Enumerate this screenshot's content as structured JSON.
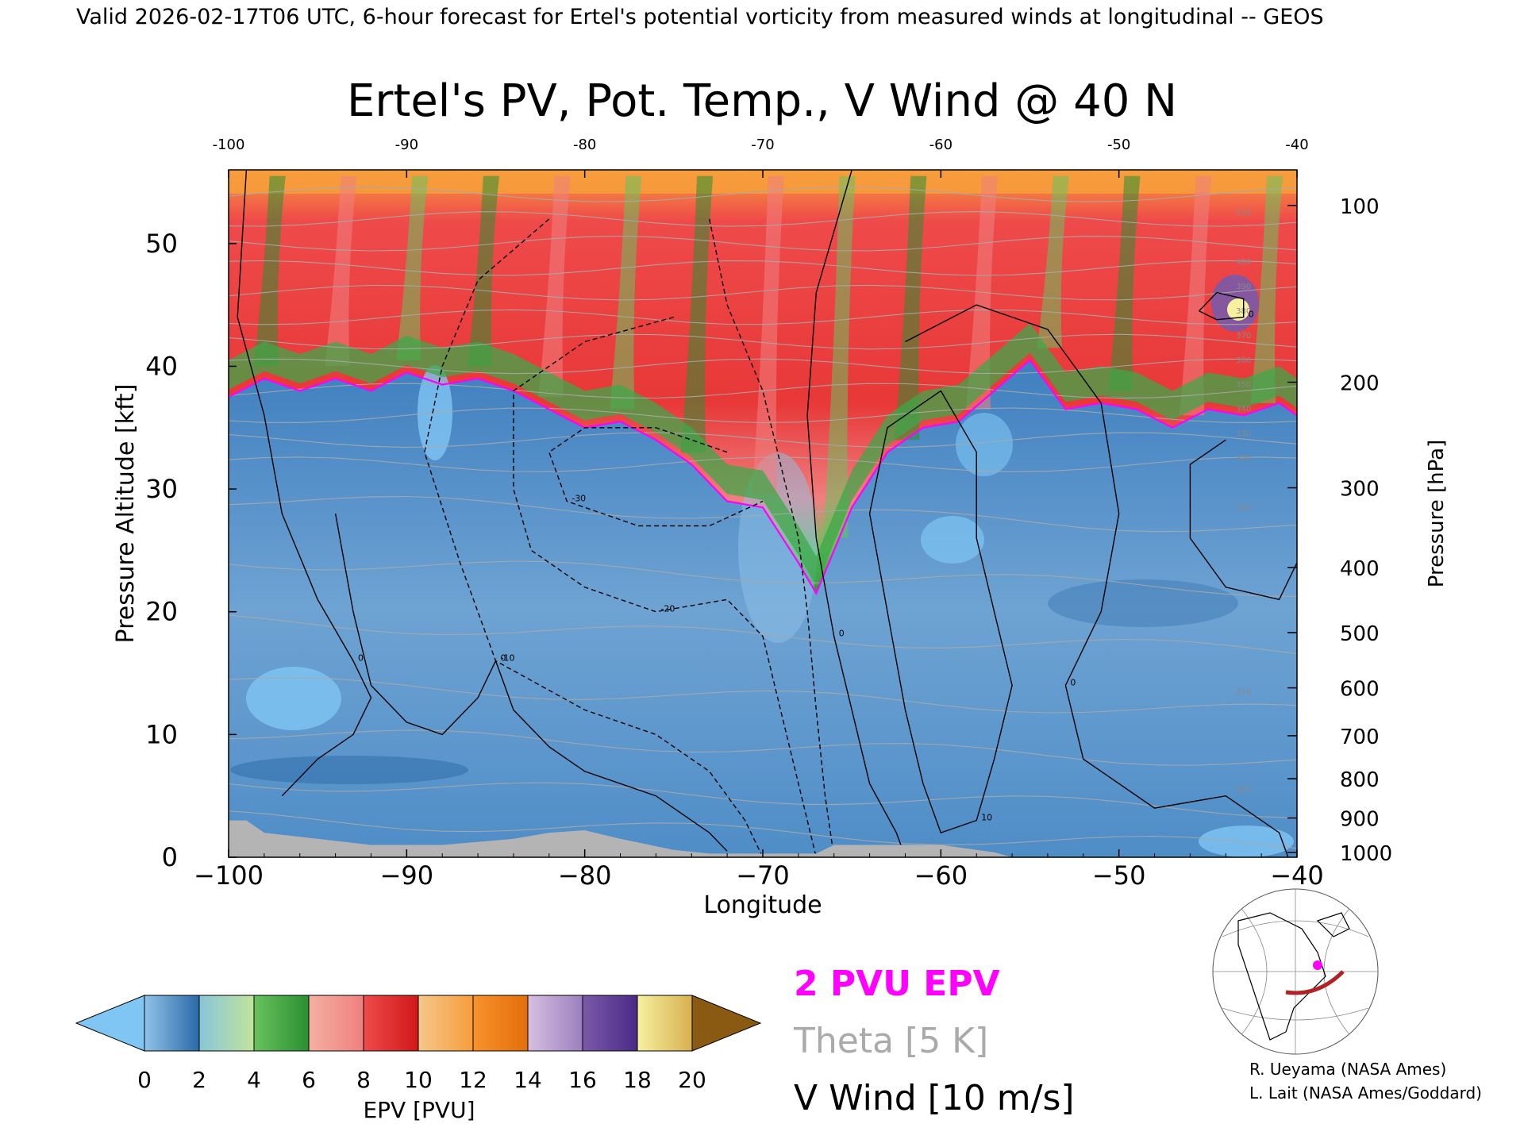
{
  "header": {
    "valid_line": "Valid 2026-02-17T06 UTC, 6-hour forecast for Ertel's potential vorticity from measured winds at longitudinal -- GEOS"
  },
  "chart_data": {
    "type": "cross-section",
    "title": "Ertel's PV, Pot. Temp., V Wind @ 40 N",
    "xlabel": "Longitude",
    "ylabel": "Pressure Altitude [kft]",
    "ylabel_right": "Pressure [hPa]",
    "xlim": [
      -100,
      -40
    ],
    "ylim": [
      0,
      56
    ],
    "x_ticks": [
      "−100",
      "−90",
      "−80",
      "−70",
      "−60",
      "−50",
      "−40"
    ],
    "x_tick_values": [
      -100,
      -90,
      -80,
      -70,
      -60,
      -50,
      -40
    ],
    "x_ticks_top": [
      "-100",
      "-90",
      "-80",
      "-70",
      "-60",
      "-50",
      "-40"
    ],
    "y_ticks": [
      "0",
      "10",
      "20",
      "30",
      "40",
      "50"
    ],
    "y_tick_values": [
      0,
      10,
      20,
      30,
      40,
      50
    ],
    "pressure_ticks": [
      {
        "label": "100",
        "kft": 53.1
      },
      {
        "label": "200",
        "kft": 38.7
      },
      {
        "label": "300",
        "kft": 30.1
      },
      {
        "label": "400",
        "kft": 23.6
      },
      {
        "label": "500",
        "kft": 18.3
      },
      {
        "label": "600",
        "kft": 13.8
      },
      {
        "label": "700",
        "kft": 9.9
      },
      {
        "label": "800",
        "kft": 6.4
      },
      {
        "label": "900",
        "kft": 3.2
      },
      {
        "label": "1000",
        "kft": 0.4
      }
    ],
    "tropopause_kft": [
      [
        -100,
        37.5
      ],
      [
        -98,
        39
      ],
      [
        -96,
        38
      ],
      [
        -94,
        39
      ],
      [
        -92,
        38
      ],
      [
        -90,
        39.5
      ],
      [
        -88,
        38.5
      ],
      [
        -86,
        39
      ],
      [
        -84,
        38
      ],
      [
        -82,
        36.5
      ],
      [
        -80,
        35
      ],
      [
        -78,
        35.5
      ],
      [
        -76,
        34
      ],
      [
        -74,
        32
      ],
      [
        -72,
        29
      ],
      [
        -70,
        28.5
      ],
      [
        -68,
        24
      ],
      [
        -67,
        21.5
      ],
      [
        -66,
        25
      ],
      [
        -65,
        28.5
      ],
      [
        -63,
        33
      ],
      [
        -61,
        35
      ],
      [
        -59,
        35.5
      ],
      [
        -57,
        38
      ],
      [
        -55,
        40.5
      ],
      [
        -53,
        36.5
      ],
      [
        -51,
        37
      ],
      [
        -49,
        36.5
      ],
      [
        -47,
        35
      ],
      [
        -45,
        36.5
      ],
      [
        -43,
        36
      ],
      [
        -41,
        37
      ],
      [
        -40,
        36
      ]
    ],
    "theta_levels": [
      {
        "kft": 2,
        "label": ""
      },
      {
        "kft": 5,
        "label": "300"
      },
      {
        "kft": 9,
        "label": ""
      },
      {
        "kft": 13,
        "label": "310"
      },
      {
        "kft": 18,
        "label": ""
      },
      {
        "kft": 23,
        "label": ""
      },
      {
        "kft": 28,
        "label": "320"
      },
      {
        "kft": 32,
        "label": "320"
      },
      {
        "kft": 34,
        "label": "330"
      },
      {
        "kft": 36,
        "label": "340"
      },
      {
        "kft": 38,
        "label": "350"
      },
      {
        "kft": 40,
        "label": "360"
      },
      {
        "kft": 42,
        "label": "370"
      },
      {
        "kft": 44,
        "label": "380"
      },
      {
        "kft": 46,
        "label": "390"
      },
      {
        "kft": 48,
        "label": "400"
      },
      {
        "kft": 50,
        "label": ""
      },
      {
        "kft": 52,
        "label": "410"
      },
      {
        "kft": 54,
        "label": ""
      }
    ],
    "v_wind_contours": [
      {
        "name": "zero-west",
        "style": "solid",
        "label": "0",
        "points": [
          [
            -99,
            56
          ],
          [
            -99.5,
            44
          ],
          [
            -98,
            36
          ],
          [
            -97,
            28
          ],
          [
            -95,
            21
          ],
          [
            -93,
            16
          ],
          [
            -92,
            13
          ],
          [
            -93,
            10
          ],
          [
            -95,
            8
          ],
          [
            -97,
            5
          ]
        ]
      },
      {
        "name": "zero-southwest",
        "style": "solid",
        "label": "0",
        "points": [
          [
            -94,
            28
          ],
          [
            -93,
            20
          ],
          [
            -92,
            14
          ],
          [
            -90,
            11
          ],
          [
            -88,
            10
          ],
          [
            -86,
            13
          ],
          [
            -85,
            16
          ],
          [
            -84,
            12
          ],
          [
            -82,
            9
          ],
          [
            -80,
            7
          ],
          [
            -76,
            5
          ],
          [
            -73,
            2
          ],
          [
            -72,
            0.5
          ]
        ]
      },
      {
        "name": "neg10",
        "style": "dashed",
        "label": "-10",
        "points": [
          [
            -82,
            52
          ],
          [
            -86,
            47
          ],
          [
            -88,
            40
          ],
          [
            -89,
            33
          ],
          [
            -87,
            24
          ],
          [
            -85,
            16
          ],
          [
            -80,
            12
          ],
          [
            -76,
            10
          ],
          [
            -73,
            7
          ],
          [
            -71,
            3
          ],
          [
            -70,
            0
          ]
        ]
      },
      {
        "name": "neg20",
        "style": "dashed",
        "label": "-20",
        "points": [
          [
            -75,
            44
          ],
          [
            -80,
            42
          ],
          [
            -84,
            38
          ],
          [
            -84,
            30
          ],
          [
            -83,
            25
          ],
          [
            -80,
            22
          ],
          [
            -76,
            20
          ],
          [
            -72,
            21
          ],
          [
            -70,
            18
          ],
          [
            -69,
            12
          ],
          [
            -68,
            6
          ],
          [
            -67,
            0
          ]
        ]
      },
      {
        "name": "neg30",
        "style": "dashed",
        "label": "-30",
        "points": [
          [
            -72,
            33
          ],
          [
            -76,
            35
          ],
          [
            -80,
            35
          ],
          [
            -82,
            33
          ],
          [
            -81,
            29
          ],
          [
            -77,
            27
          ],
          [
            -73,
            27
          ],
          [
            -70,
            29
          ]
        ]
      },
      {
        "name": "jet-core",
        "style": "dashed",
        "label": "",
        "points": [
          [
            -73,
            52
          ],
          [
            -72,
            45
          ],
          [
            -70,
            38
          ],
          [
            -69,
            32
          ],
          [
            -68,
            26
          ],
          [
            -67.5,
            20
          ],
          [
            -67,
            12
          ],
          [
            -66.5,
            5
          ],
          [
            -66,
            0
          ]
        ]
      },
      {
        "name": "zero-trough",
        "style": "solid",
        "label": "0",
        "points": [
          [
            -65,
            56
          ],
          [
            -67,
            46
          ],
          [
            -67.5,
            36
          ],
          [
            -67,
            26
          ],
          [
            -66,
            18
          ],
          [
            -65,
            12
          ],
          [
            -64,
            6
          ],
          [
            -62.5,
            2
          ],
          [
            -62,
            0
          ]
        ]
      },
      {
        "name": "pos10",
        "style": "solid",
        "label": "10",
        "points": [
          [
            -60,
            38
          ],
          [
            -63,
            35
          ],
          [
            -64,
            28
          ],
          [
            -63,
            20
          ],
          [
            -62,
            12
          ],
          [
            -61,
            6
          ],
          [
            -60,
            2
          ],
          [
            -58,
            3
          ],
          [
            -57,
            8
          ],
          [
            -56,
            14
          ],
          [
            -57,
            20
          ],
          [
            -58,
            26
          ],
          [
            -58,
            33
          ],
          [
            -60,
            38
          ]
        ]
      },
      {
        "name": "zero-east",
        "style": "solid",
        "label": "0",
        "points": [
          [
            -62,
            42
          ],
          [
            -58,
            45
          ],
          [
            -54,
            43
          ],
          [
            -51,
            37
          ],
          [
            -50,
            28
          ],
          [
            -51,
            20
          ],
          [
            -53,
            14
          ],
          [
            -52,
            8
          ],
          [
            -48,
            4
          ],
          [
            -44,
            5
          ],
          [
            -41,
            2
          ],
          [
            -40.5,
            0
          ]
        ]
      },
      {
        "name": "zero-east-loop",
        "style": "solid",
        "label": "",
        "points": [
          [
            -44,
            34
          ],
          [
            -46,
            32
          ],
          [
            -46,
            26
          ],
          [
            -44,
            22
          ],
          [
            -41,
            21
          ],
          [
            -40,
            24
          ]
        ]
      },
      {
        "name": "zero-upper-right",
        "style": "solid",
        "label": "0",
        "points": [
          [
            -45.5,
            44.5
          ],
          [
            -44.5,
            46
          ],
          [
            -43,
            45.5
          ],
          [
            -43,
            44
          ],
          [
            -44.5,
            43.8
          ],
          [
            -45.5,
            44.5
          ]
        ]
      }
    ],
    "terrain_kft": [
      [
        -100,
        3
      ],
      [
        -99,
        3
      ],
      [
        -98,
        2
      ],
      [
        -95,
        1.5
      ],
      [
        -92,
        1
      ],
      [
        -88,
        1
      ],
      [
        -84,
        1.5
      ],
      [
        -82,
        2
      ],
      [
        -80,
        2.2
      ],
      [
        -78,
        1.5
      ],
      [
        -75,
        0.6
      ],
      [
        -73,
        0.3
      ],
      [
        -67,
        0.3
      ],
      [
        -66,
        1
      ],
      [
        -62,
        1
      ],
      [
        -60,
        1
      ],
      [
        -57,
        0.4
      ],
      [
        -56,
        0
      ],
      [
        -40,
        0
      ]
    ],
    "colorbar": {
      "label": "EPV [PVU]",
      "ticks": [
        "0",
        "2",
        "4",
        "6",
        "8",
        "10",
        "12",
        "14",
        "16",
        "18",
        "20"
      ],
      "bins": [
        {
          "from": 0,
          "to": 2,
          "colors": [
            "#8fc2e8",
            "#2b6aa8"
          ]
        },
        {
          "from": 2,
          "to": 4,
          "colors": [
            "#88c6d8",
            "#c2e39c"
          ]
        },
        {
          "from": 4,
          "to": 6,
          "colors": [
            "#68c25c",
            "#2a8f32"
          ]
        },
        {
          "from": 6,
          "to": 8,
          "colors": [
            "#f4b0a0",
            "#f08080"
          ]
        },
        {
          "from": 8,
          "to": 10,
          "colors": [
            "#ef4a4a",
            "#d01818"
          ]
        },
        {
          "from": 10,
          "to": 12,
          "colors": [
            "#f5c78a",
            "#f79d3c"
          ]
        },
        {
          "from": 12,
          "to": 14,
          "colors": [
            "#f8922c",
            "#e36e0a"
          ]
        },
        {
          "from": 14,
          "to": 16,
          "colors": [
            "#d6bfe0",
            "#9b80bf"
          ]
        },
        {
          "from": 16,
          "to": 18,
          "colors": [
            "#7a5aa8",
            "#4a2a88"
          ]
        },
        {
          "from": 18,
          "to": 20,
          "colors": [
            "#f6f0a0",
            "#d8b050"
          ]
        }
      ],
      "under_color": "#7fc6f4",
      "over_color": "#8b5a12"
    },
    "legend": [
      {
        "label": "2 PVU EPV",
        "color": "#ff00ff"
      },
      {
        "label": "Theta [5 K]",
        "color": "#aaaaaa"
      },
      {
        "label": "V Wind [10 m/s]",
        "color": "#000000"
      }
    ]
  },
  "colors": {
    "tropopause": "#ff00ff",
    "theta": "#a8a8a8",
    "terrain": "#b4b4b4",
    "locator_track": "#b22222",
    "locator_point": "#ff00ff"
  },
  "credits": [
    "R. Ueyama (NASA Ames)",
    "L. Lait (NASA Ames/Goddard)"
  ]
}
